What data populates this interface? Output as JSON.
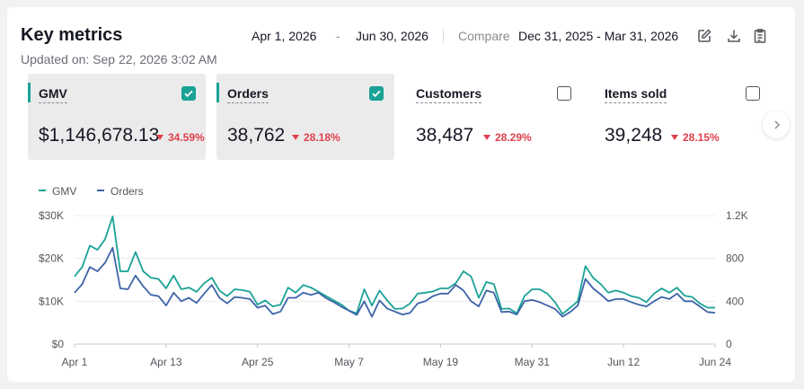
{
  "header": {
    "title": "Key metrics",
    "updated": "Updated on: Sep 22, 2026 3:02 AM",
    "date_start": "Apr 1, 2026",
    "date_sep": "-",
    "date_end": "Jun 30, 2026",
    "compare_label": "Compare",
    "compare_range": "Dec 31, 2025 - Mar 31, 2026",
    "icons": [
      "edit-icon",
      "download-icon",
      "clipboard-icon"
    ]
  },
  "metrics": [
    {
      "label": "GMV",
      "value": "$1,146,678.13",
      "change": "34.59%",
      "checked": true,
      "selected": true
    },
    {
      "label": "Orders",
      "value": "38,762",
      "change": "28.18%",
      "checked": true,
      "selected": true
    },
    {
      "label": "Customers",
      "value": "38,487",
      "change": "28.29%",
      "checked": false,
      "selected": false
    },
    {
      "label": "Items sold",
      "value": "39,248",
      "change": "28.15%",
      "checked": false,
      "selected": false
    }
  ],
  "colors": {
    "accent": "#1aa296",
    "gmv_line": "#1aa296",
    "orders_line": "#3d63a8",
    "decrease": "#e0404d"
  },
  "chart_data": {
    "type": "line",
    "legend": [
      "GMV",
      "Orders"
    ],
    "x_ticks": [
      "Apr 1",
      "Apr 13",
      "Apr 25",
      "May 7",
      "May 19",
      "May 31",
      "Jun 12",
      "Jun 24"
    ],
    "y_left_ticks": [
      "$0",
      "$10K",
      "$20K",
      "$30K"
    ],
    "y_right_ticks": [
      "0",
      "400",
      "800",
      "1.2K"
    ],
    "y_left_range": [
      0,
      30000
    ],
    "y_right_range": [
      0,
      1200
    ],
    "grid": true,
    "start_date": "2026-04-01",
    "series": [
      {
        "name": "GMV",
        "axis": "left",
        "values": [
          15800,
          18000,
          23000,
          22000,
          24500,
          29800,
          17000,
          17000,
          21500,
          17000,
          15500,
          15200,
          13000,
          16000,
          12800,
          13200,
          12200,
          14200,
          15500,
          12500,
          11200,
          12800,
          12600,
          12200,
          9200,
          10200,
          8800,
          9200,
          13200,
          12000,
          13800,
          13200,
          12200,
          11200,
          10200,
          9200,
          7800,
          7200,
          12800,
          9000,
          12500,
          10200,
          8200,
          8300,
          9500,
          11800,
          12000,
          12300,
          13000,
          13000,
          14200,
          17000,
          15800,
          10800,
          14500,
          14000,
          8200,
          8300,
          7200,
          11200,
          12800,
          12800,
          11800,
          9800,
          7000,
          8500,
          10000,
          18200,
          15500,
          14000,
          12000,
          12500,
          12000,
          11200,
          10800,
          9800,
          11800,
          13000,
          12000,
          13200,
          11300,
          11000,
          9500,
          8500,
          8500
        ]
      },
      {
        "name": "Orders",
        "axis": "left",
        "values": [
          12000,
          14000,
          18000,
          17000,
          19000,
          22500,
          13000,
          12800,
          16000,
          13500,
          11500,
          11200,
          9000,
          12000,
          10000,
          10800,
          9600,
          11800,
          13800,
          10800,
          9500,
          11000,
          10800,
          10500,
          8500,
          9000,
          7000,
          7600,
          10800,
          10800,
          12000,
          11500,
          12000,
          10700,
          9800,
          8700,
          7800,
          6800,
          10000,
          6400,
          10200,
          8300,
          7600,
          6900,
          7300,
          9500,
          10000,
          11200,
          11800,
          11800,
          13800,
          12500,
          10000,
          8800,
          12500,
          12000,
          7500,
          7600,
          6900,
          10000,
          10300,
          9800,
          9000,
          8200,
          6400,
          7500,
          9000,
          15200,
          13000,
          11600,
          10000,
          10500,
          10500,
          9800,
          9200,
          8800,
          10000,
          11000,
          10500,
          11800,
          10000,
          10000,
          8800,
          7500,
          7300
        ]
      }
    ]
  }
}
